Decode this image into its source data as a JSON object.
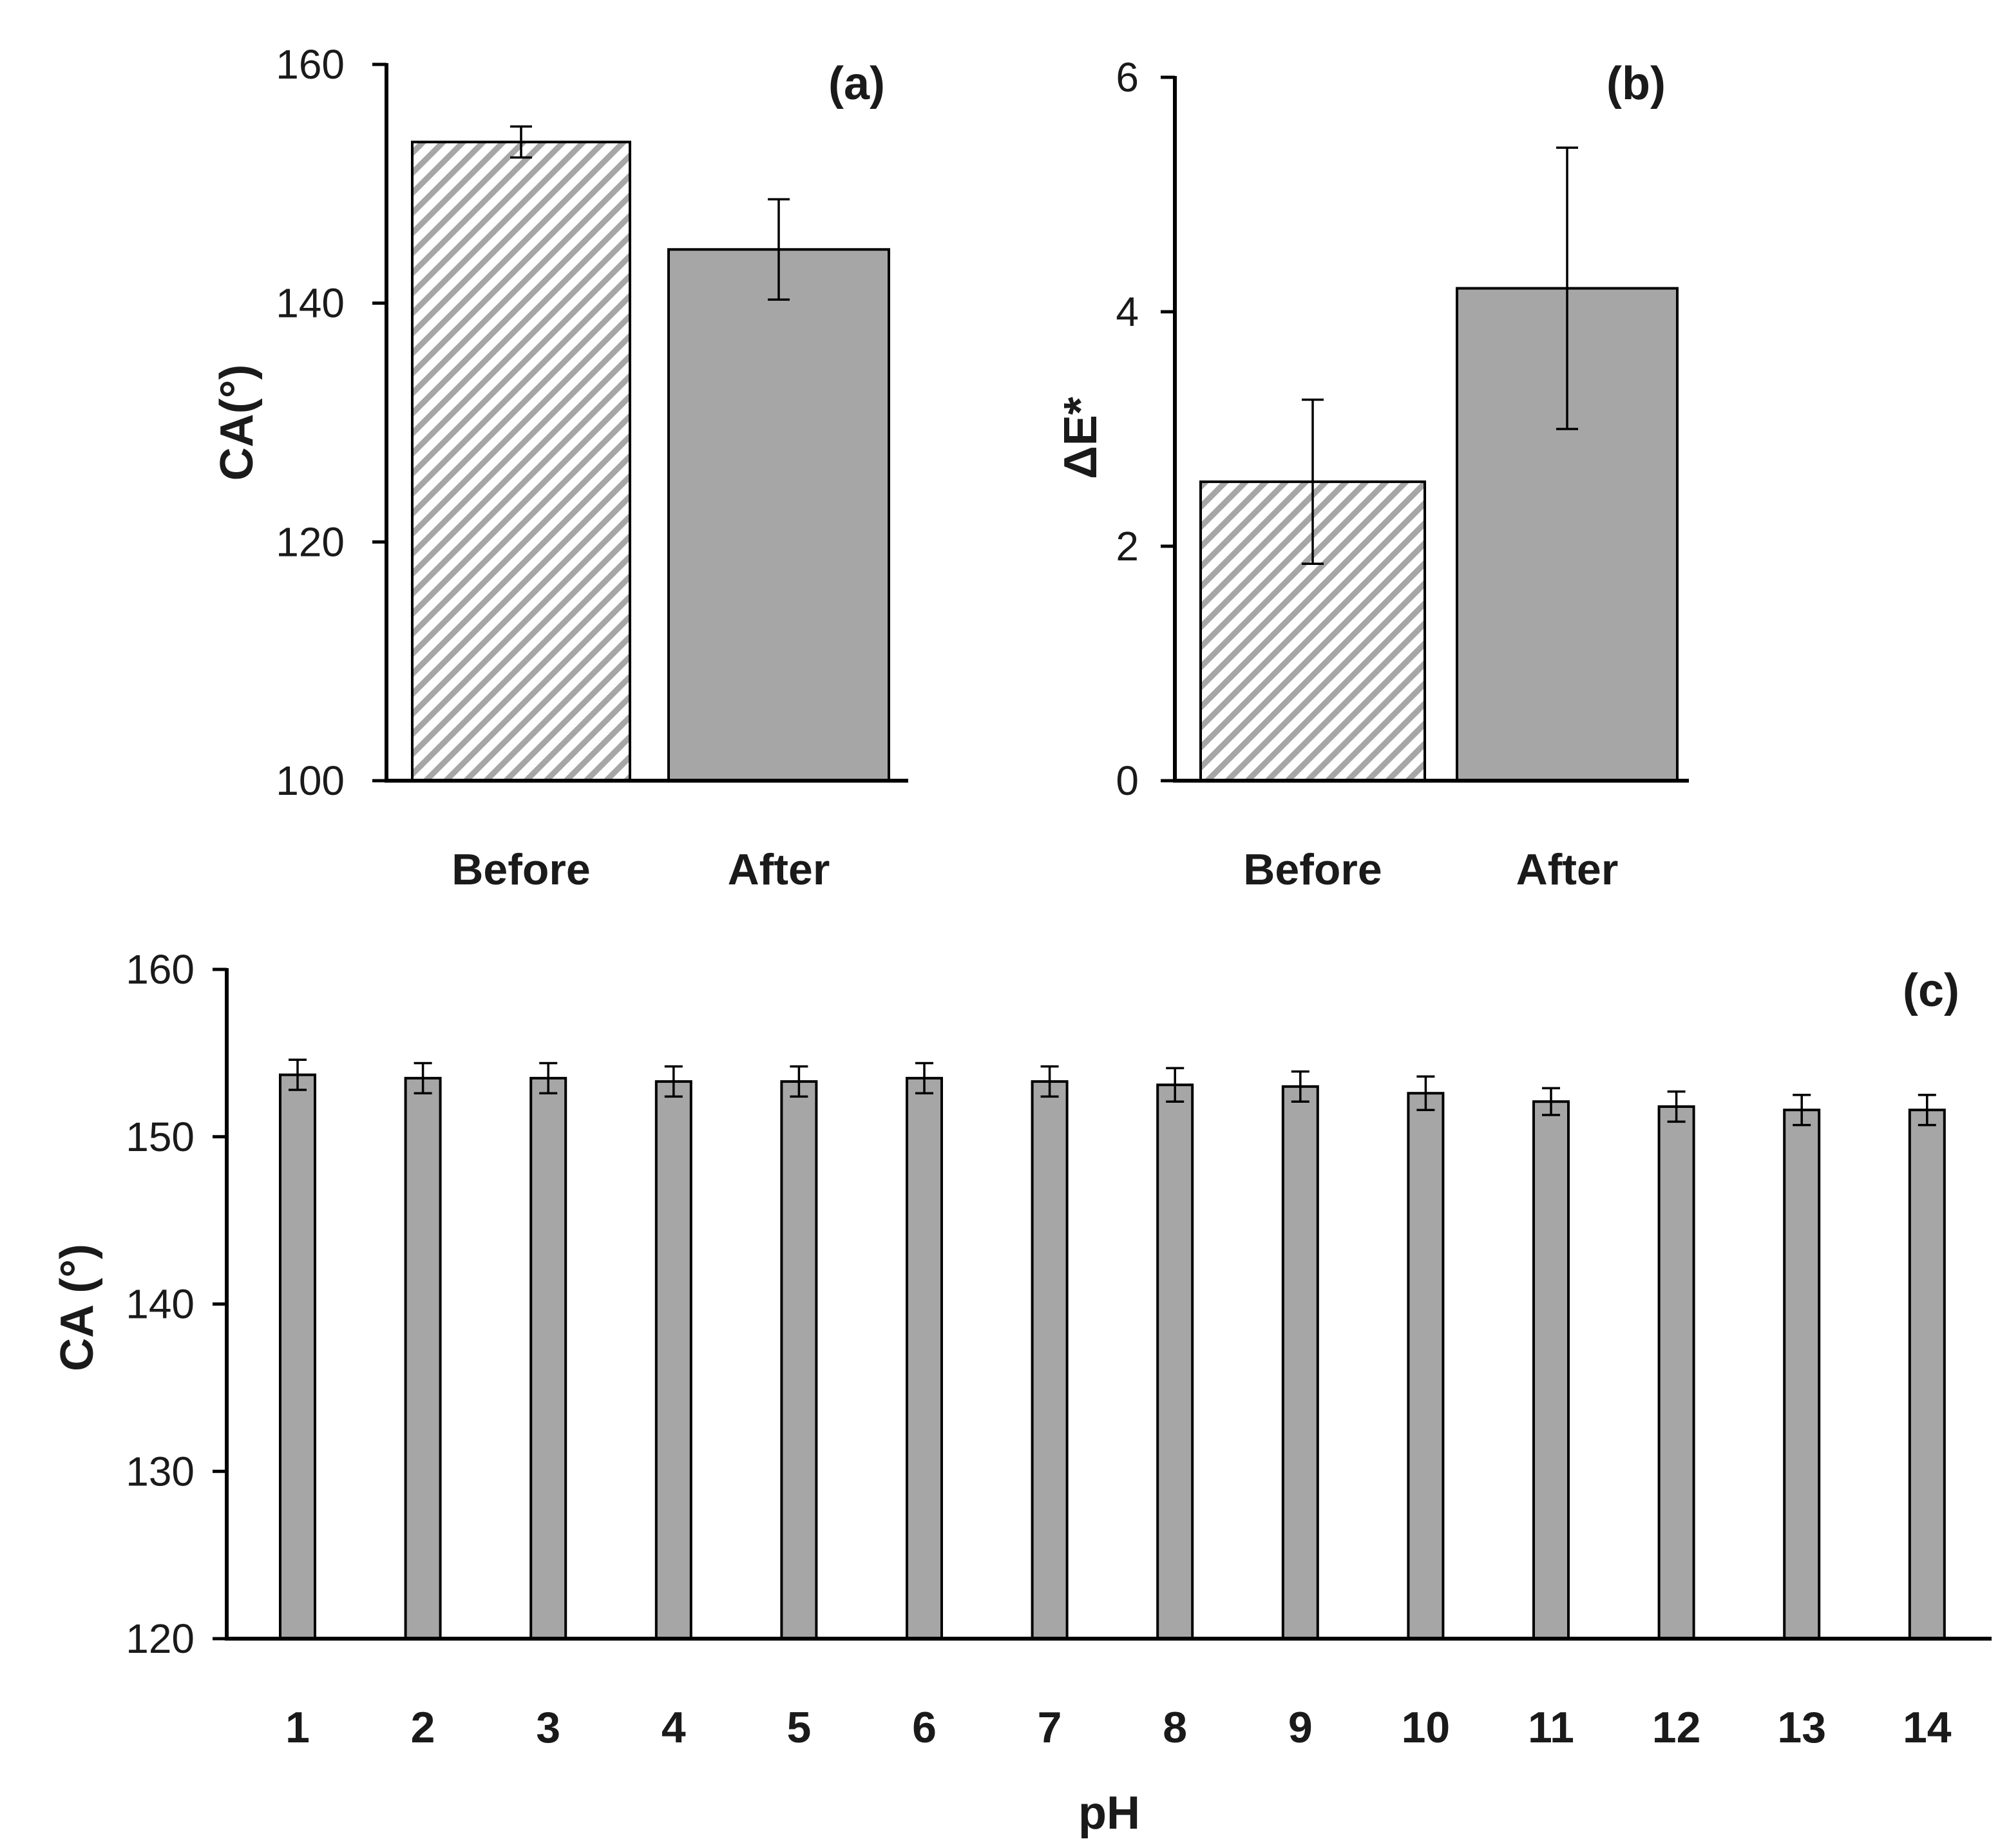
{
  "colors": {
    "bar_fill": "#a6a6a6",
    "hatch_bg": "#ffffff",
    "hatch_line": "#a6a6a6",
    "axis": "#000000",
    "text": "#1a1a1a"
  },
  "chart_data": [
    {
      "id": "a",
      "type": "bar",
      "panel_label": "(a)",
      "title": "",
      "xlabel": "",
      "ylabel": "CA(°)",
      "ylim": [
        100,
        160
      ],
      "yticks": [
        100,
        120,
        140,
        160
      ],
      "categories": [
        "Before",
        "After"
      ],
      "values": [
        153.5,
        144.5
      ],
      "errors": [
        1.3,
        4.2
      ],
      "styles": [
        "hatched",
        "solid"
      ]
    },
    {
      "id": "b",
      "type": "bar",
      "panel_label": "(b)",
      "title": "",
      "xlabel": "",
      "ylabel": "ΔE*",
      "ylim": [
        0,
        6
      ],
      "yticks": [
        0,
        2,
        4,
        6
      ],
      "categories": [
        "Before",
        "After"
      ],
      "values": [
        2.55,
        4.2
      ],
      "errors": [
        0.7,
        1.2
      ],
      "styles": [
        "hatched",
        "solid"
      ]
    },
    {
      "id": "c",
      "type": "bar",
      "panel_label": "(c)",
      "title": "",
      "xlabel": "pH",
      "ylabel": "CA (°)",
      "ylim": [
        120,
        160
      ],
      "yticks": [
        120,
        130,
        140,
        150,
        160
      ],
      "categories": [
        "1",
        "2",
        "3",
        "4",
        "5",
        "6",
        "7",
        "8",
        "9",
        "10",
        "11",
        "12",
        "13",
        "14"
      ],
      "values": [
        153.7,
        153.5,
        153.5,
        153.3,
        153.3,
        153.5,
        153.3,
        153.1,
        153.0,
        152.6,
        152.1,
        151.8,
        151.6,
        151.6
      ],
      "errors": [
        0.9,
        0.9,
        0.9,
        0.9,
        0.9,
        0.9,
        0.9,
        1.0,
        0.9,
        1.0,
        0.8,
        0.9,
        0.9,
        0.9
      ],
      "styles": [
        "solid"
      ]
    }
  ]
}
